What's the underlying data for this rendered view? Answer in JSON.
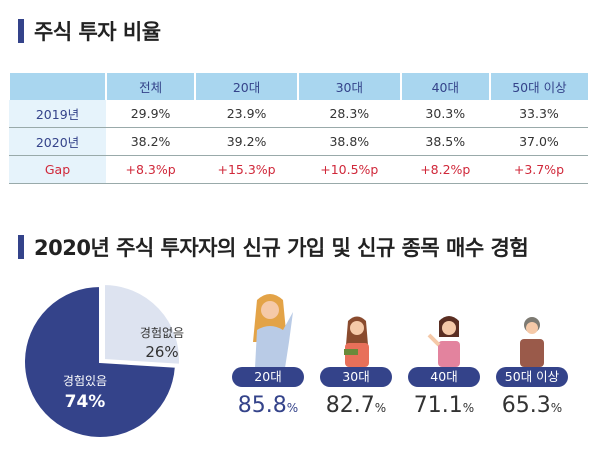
{
  "section1": {
    "title": "주식 투자 비율"
  },
  "table": {
    "headers": [
      "",
      "전체",
      "20대",
      "30대",
      "40대",
      "50대 이상"
    ],
    "rows": [
      {
        "label": "2019년",
        "cells": [
          "29.9%",
          "23.9%",
          "28.3%",
          "30.3%",
          "33.3%"
        ]
      },
      {
        "label": "2020년",
        "cells": [
          "38.2%",
          "39.2%",
          "38.8%",
          "38.5%",
          "37.0%"
        ]
      },
      {
        "label": "Gap",
        "cells": [
          "+8.3%p",
          "+15.3%p",
          "+10.5%p",
          "+8.2%p",
          "+3.7%p"
        ]
      }
    ]
  },
  "section2": {
    "title": "2020년 주식 투자자의 신규 가입 및 신규 종목 매수 경험"
  },
  "chart_data": {
    "type": "pie",
    "slices": [
      {
        "label": "경험있음",
        "value": 74,
        "display": "74%",
        "color": "#34438a"
      },
      {
        "label": "경험없음",
        "value": 26,
        "display": "26%",
        "color": "#dde3f0"
      }
    ]
  },
  "age_groups": [
    {
      "label": "20대",
      "value": "85.8",
      "unit": "%"
    },
    {
      "label": "30대",
      "value": "82.7",
      "unit": "%"
    },
    {
      "label": "40대",
      "value": "71.1",
      "unit": "%"
    },
    {
      "label": "50대 이상",
      "value": "65.3",
      "unit": "%"
    }
  ]
}
